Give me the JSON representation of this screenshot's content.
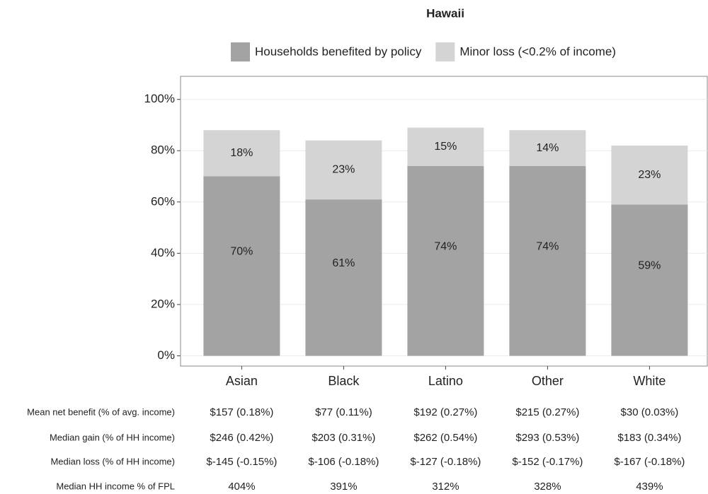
{
  "chart_data": {
    "type": "stacked_bar",
    "title": "Hawaii",
    "categories": [
      "Asian",
      "Black",
      "Latino",
      "Other",
      "White"
    ],
    "series": [
      {
        "name": "Households benefited by policy",
        "color": "#a3a3a3",
        "values": [
          70,
          61,
          74,
          74,
          59
        ],
        "value_labels": [
          "70%",
          "61%",
          "74%",
          "74%",
          "59%"
        ]
      },
      {
        "name": "Minor loss (<0.2% of income)",
        "color": "#d4d4d4",
        "values": [
          18,
          23,
          15,
          14,
          23
        ],
        "value_labels": [
          "18%",
          "23%",
          "15%",
          "14%",
          "23%"
        ]
      }
    ],
    "ylim": [
      -4,
      109
    ],
    "yticks": [
      {
        "value": 0,
        "label": "0%"
      },
      {
        "value": 20,
        "label": "20%"
      },
      {
        "value": 40,
        "label": "40%"
      },
      {
        "value": 60,
        "label": "60%"
      },
      {
        "value": 80,
        "label": "80%"
      },
      {
        "value": 100,
        "label": "100%"
      }
    ],
    "grid": true,
    "legend": "top"
  },
  "table": {
    "rows": [
      {
        "label": "Mean net benefit (% of avg. income)",
        "cells": [
          "$157 (0.18%)",
          "$77 (0.11%)",
          "$192 (0.27%)",
          "$215 (0.27%)",
          "$30 (0.03%)"
        ]
      },
      {
        "label": "Median gain (% of HH income)",
        "cells": [
          "$246 (0.42%)",
          "$203 (0.31%)",
          "$262 (0.54%)",
          "$293 (0.53%)",
          "$183 (0.34%)"
        ]
      },
      {
        "label": "Median loss (% of HH income)",
        "cells": [
          "$-145 (-0.15%)",
          "$-106 (-0.18%)",
          "$-127 (-0.18%)",
          "$-152 (-0.17%)",
          "$-167 (-0.18%)"
        ]
      },
      {
        "label": "Median HH income % of FPL",
        "cells": [
          "404%",
          "391%",
          "312%",
          "328%",
          "439%"
        ]
      }
    ]
  }
}
